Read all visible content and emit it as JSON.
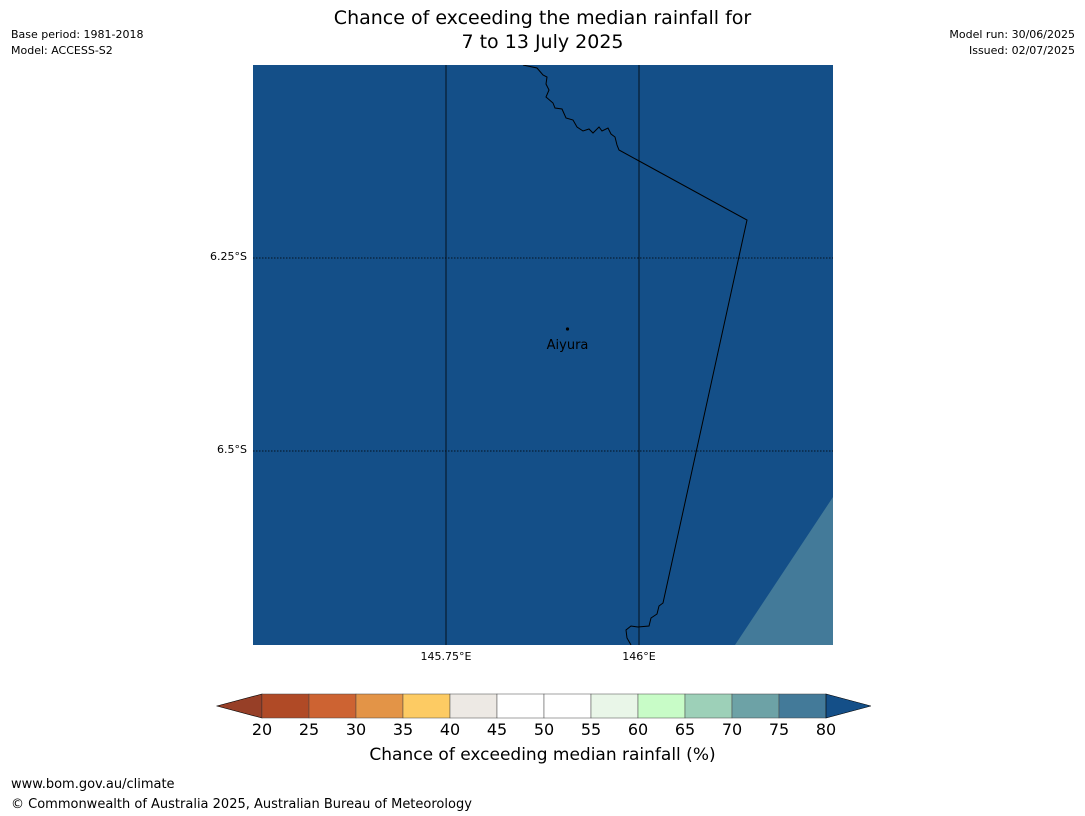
{
  "title": {
    "line1": "Chance of exceeding the median rainfall for",
    "line2": "7 to 13 July 2025"
  },
  "meta_left": {
    "base_period": "Base period: 1981-2018",
    "model": "Model: ACCESS-S2"
  },
  "meta_right": {
    "model_run": "Model run: 30/06/2025",
    "issued": "Issued: 02/07/2025"
  },
  "map": {
    "fill_color": "#144f88",
    "secondary_fill_color": "#437a99",
    "place": "Aiyura",
    "lat_labels": [
      "6.25°S",
      "6.5°S"
    ],
    "lon_labels": [
      "145.75°E",
      "146°E"
    ]
  },
  "colorbar": {
    "ticks": [
      "20",
      "25",
      "30",
      "35",
      "40",
      "45",
      "50",
      "55",
      "60",
      "65",
      "70",
      "75",
      "80"
    ],
    "colors": [
      "#b04a26",
      "#cd6332",
      "#e39447",
      "#fdcb63",
      "#ede9e4",
      "#ffffff",
      "#ffffff",
      "#e9f6e8",
      "#c8fcc7",
      "#9dd0b8",
      "#6da2a6",
      "#437a99"
    ],
    "under_color": "#973f27",
    "over_color": "#144f88",
    "label": "Chance of exceeding median rainfall (%)"
  },
  "footer": {
    "website": "www.bom.gov.au/climate",
    "copyright": "© Commonwealth of Australia 2025, Australian Bureau of Meteorology"
  }
}
